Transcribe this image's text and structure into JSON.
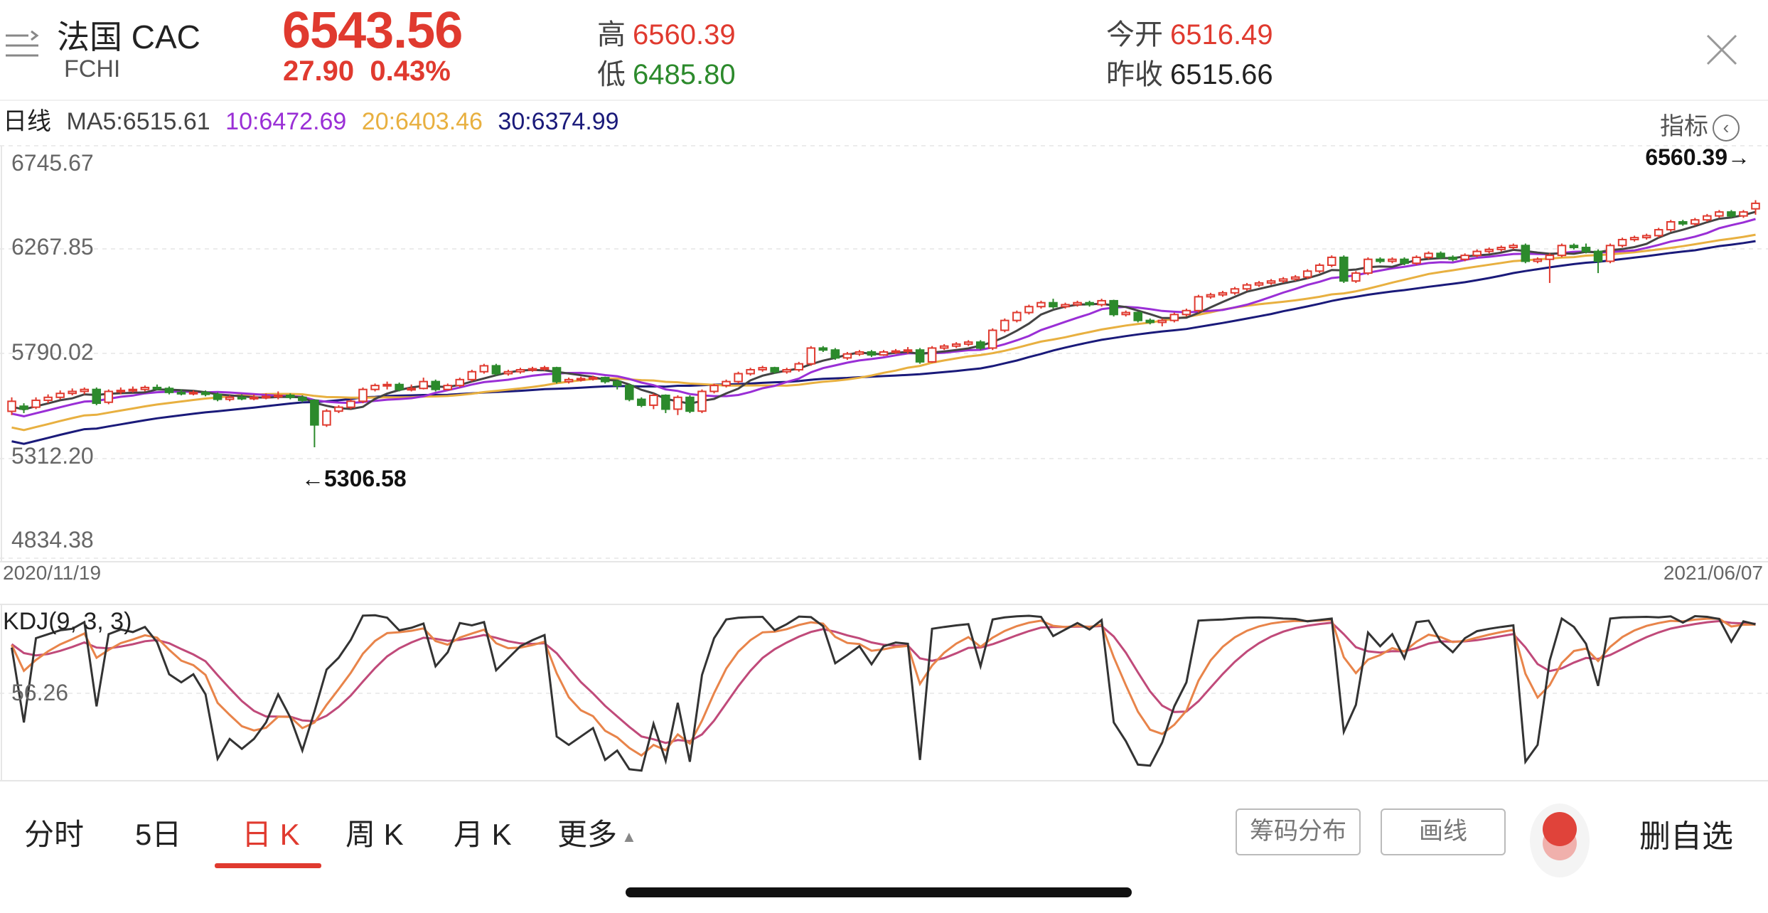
{
  "header": {
    "title": "法国 CAC",
    "subtitle": "FCHI",
    "price": "6543.56",
    "change": "27.90",
    "change_pct": "0.43%",
    "high_label": "高",
    "high_value": "6560.39",
    "low_label": "低",
    "low_value": "6485.80",
    "open_label": "今开",
    "open_value": "6516.49",
    "prev_close_label": "昨收",
    "prev_close_value": "6515.66",
    "menu_icon": "list-menu-icon",
    "close_icon": "close-icon"
  },
  "ma_legend": {
    "period_label": "日线",
    "ma5": "MA5:6515.61",
    "ma10": "10:6472.69",
    "ma20": "20:6403.46",
    "ma30": "30:6374.99",
    "indicator_label": "指标",
    "indicator_icon": "chevron-left-icon"
  },
  "colors": {
    "up": "#e03a2f",
    "down": "#2c8a2c",
    "ma5": "#444444",
    "ma10": "#9a2fd6",
    "ma20": "#e8b040",
    "ma30": "#1a1a7a",
    "k": "#333333",
    "d": "#e8844a",
    "j": "#c04a7a"
  },
  "chart_data": [
    {
      "type": "candlestick",
      "y_ticks": [
        "6745.67",
        "6267.85",
        "5790.02",
        "5312.20",
        "4834.38"
      ],
      "ylim": [
        4834.38,
        6745.67
      ],
      "x_start_label": "2020/11/19",
      "x_end_label": "2021/06/07",
      "high_annotation": "6560.39→",
      "low_annotation": "←5306.58",
      "candles": [
        [
          5489,
          5540,
          5470,
          5560
        ],
        [
          5515,
          5500,
          5480,
          5530
        ],
        [
          5510,
          5545,
          5500,
          5560
        ],
        [
          5545,
          5560,
          5530,
          5575
        ],
        [
          5560,
          5580,
          5550,
          5595
        ],
        [
          5580,
          5590,
          5570,
          5605
        ],
        [
          5590,
          5600,
          5575,
          5610
        ],
        [
          5600,
          5530,
          5520,
          5610
        ],
        [
          5535,
          5590,
          5525,
          5600
        ],
        [
          5590,
          5595,
          5575,
          5610
        ],
        [
          5595,
          5600,
          5585,
          5615
        ],
        [
          5600,
          5610,
          5590,
          5620
        ],
        [
          5610,
          5605,
          5595,
          5625
        ],
        [
          5605,
          5585,
          5575,
          5615
        ],
        [
          5585,
          5580,
          5570,
          5600
        ],
        [
          5580,
          5585,
          5570,
          5595
        ],
        [
          5585,
          5575,
          5565,
          5595
        ],
        [
          5575,
          5550,
          5540,
          5585
        ],
        [
          5550,
          5560,
          5540,
          5570
        ],
        [
          5560,
          5555,
          5545,
          5575
        ],
        [
          5555,
          5560,
          5545,
          5575
        ],
        [
          5560,
          5565,
          5550,
          5580
        ],
        [
          5565,
          5570,
          5550,
          5590
        ],
        [
          5570,
          5560,
          5550,
          5580
        ],
        [
          5560,
          5545,
          5535,
          5570
        ],
        [
          5545,
          5420,
          5307,
          5550
        ],
        [
          5420,
          5490,
          5410,
          5500
        ],
        [
          5490,
          5510,
          5480,
          5520
        ],
        [
          5510,
          5540,
          5500,
          5550
        ],
        [
          5540,
          5600,
          5530,
          5610
        ],
        [
          5600,
          5620,
          5590,
          5630
        ],
        [
          5620,
          5625,
          5600,
          5640
        ],
        [
          5625,
          5600,
          5590,
          5635
        ],
        [
          5600,
          5605,
          5590,
          5625
        ],
        [
          5605,
          5640,
          5600,
          5660
        ],
        [
          5640,
          5600,
          5590,
          5650
        ],
        [
          5600,
          5620,
          5595,
          5630
        ],
        [
          5620,
          5650,
          5610,
          5660
        ],
        [
          5650,
          5690,
          5640,
          5700
        ],
        [
          5690,
          5720,
          5680,
          5730
        ],
        [
          5720,
          5680,
          5670,
          5730
        ],
        [
          5680,
          5690,
          5670,
          5700
        ],
        [
          5690,
          5700,
          5680,
          5710
        ],
        [
          5700,
          5705,
          5690,
          5715
        ],
        [
          5705,
          5710,
          5695,
          5720
        ],
        [
          5710,
          5640,
          5630,
          5715
        ],
        [
          5640,
          5650,
          5630,
          5660
        ],
        [
          5650,
          5655,
          5640,
          5665
        ],
        [
          5655,
          5660,
          5645,
          5670
        ],
        [
          5660,
          5640,
          5630,
          5665
        ],
        [
          5640,
          5620,
          5600,
          5650
        ],
        [
          5620,
          5550,
          5540,
          5630
        ],
        [
          5550,
          5520,
          5510,
          5560
        ],
        [
          5520,
          5570,
          5500,
          5580
        ],
        [
          5570,
          5500,
          5480,
          5575
        ],
        [
          5500,
          5560,
          5470,
          5570
        ],
        [
          5560,
          5490,
          5480,
          5570
        ],
        [
          5490,
          5590,
          5480,
          5600
        ],
        [
          5590,
          5620,
          5580,
          5630
        ],
        [
          5620,
          5640,
          5610,
          5650
        ],
        [
          5640,
          5680,
          5630,
          5690
        ],
        [
          5680,
          5700,
          5670,
          5710
        ],
        [
          5700,
          5710,
          5690,
          5720
        ],
        [
          5710,
          5690,
          5680,
          5715
        ],
        [
          5690,
          5700,
          5680,
          5710
        ],
        [
          5700,
          5730,
          5690,
          5740
        ],
        [
          5730,
          5810,
          5720,
          5820
        ],
        [
          5810,
          5800,
          5790,
          5820
        ],
        [
          5800,
          5760,
          5750,
          5810
        ],
        [
          5760,
          5780,
          5750,
          5790
        ],
        [
          5780,
          5790,
          5770,
          5800
        ],
        [
          5790,
          5775,
          5765,
          5800
        ],
        [
          5775,
          5790,
          5770,
          5800
        ],
        [
          5790,
          5795,
          5780,
          5805
        ],
        [
          5795,
          5800,
          5780,
          5815
        ],
        [
          5800,
          5740,
          5730,
          5810
        ],
        [
          5740,
          5810,
          5735,
          5820
        ],
        [
          5810,
          5820,
          5800,
          5830
        ],
        [
          5820,
          5830,
          5810,
          5840
        ],
        [
          5830,
          5840,
          5820,
          5850
        ],
        [
          5840,
          5810,
          5800,
          5850
        ],
        [
          5810,
          5900,
          5800,
          5910
        ],
        [
          5900,
          5950,
          5890,
          5960
        ],
        [
          5950,
          5990,
          5940,
          6000
        ],
        [
          5990,
          6020,
          5980,
          6030
        ],
        [
          6020,
          6040,
          6010,
          6050
        ],
        [
          6040,
          6020,
          6010,
          6060
        ],
        [
          6020,
          6030,
          6010,
          6040
        ],
        [
          6030,
          6040,
          6020,
          6050
        ],
        [
          6040,
          6030,
          6020,
          6050
        ],
        [
          6030,
          6050,
          6020,
          6060
        ],
        [
          6050,
          5980,
          5970,
          6055
        ],
        [
          5980,
          5990,
          5970,
          6000
        ],
        [
          5990,
          5950,
          5940,
          5995
        ],
        [
          5950,
          5940,
          5930,
          5960
        ],
        [
          5940,
          5950,
          5920,
          5960
        ],
        [
          5950,
          5980,
          5940,
          5990
        ],
        [
          5980,
          6000,
          5970,
          6010
        ],
        [
          6000,
          6070,
          5990,
          6080
        ],
        [
          6070,
          6080,
          6060,
          6090
        ],
        [
          6080,
          6090,
          6070,
          6100
        ],
        [
          6090,
          6110,
          6080,
          6120
        ],
        [
          6110,
          6130,
          6100,
          6140
        ],
        [
          6130,
          6140,
          6120,
          6150
        ],
        [
          6140,
          6150,
          6130,
          6160
        ],
        [
          6150,
          6160,
          6140,
          6170
        ],
        [
          6160,
          6170,
          6150,
          6180
        ],
        [
          6170,
          6200,
          6160,
          6210
        ],
        [
          6200,
          6230,
          6190,
          6240
        ],
        [
          6230,
          6270,
          6220,
          6280
        ],
        [
          6270,
          6150,
          6140,
          6280
        ],
        [
          6150,
          6190,
          6140,
          6200
        ],
        [
          6190,
          6260,
          6180,
          6270
        ],
        [
          6260,
          6250,
          6240,
          6270
        ],
        [
          6250,
          6260,
          6240,
          6270
        ],
        [
          6260,
          6240,
          6230,
          6270
        ],
        [
          6240,
          6270,
          6230,
          6280
        ],
        [
          6270,
          6290,
          6260,
          6300
        ],
        [
          6290,
          6270,
          6260,
          6300
        ],
        [
          6270,
          6260,
          6250,
          6280
        ],
        [
          6260,
          6280,
          6250,
          6290
        ],
        [
          6280,
          6300,
          6270,
          6310
        ],
        [
          6300,
          6310,
          6290,
          6320
        ],
        [
          6310,
          6320,
          6300,
          6330
        ],
        [
          6320,
          6330,
          6310,
          6340
        ],
        [
          6330,
          6250,
          6240,
          6340
        ],
        [
          6250,
          6260,
          6240,
          6270
        ],
        [
          6260,
          6280,
          6140,
          6290
        ],
        [
          6280,
          6330,
          6270,
          6340
        ],
        [
          6330,
          6320,
          6310,
          6340
        ],
        [
          6320,
          6300,
          6290,
          6340
        ],
        [
          6300,
          6250,
          6190,
          6310
        ],
        [
          6250,
          6330,
          6240,
          6340
        ],
        [
          6330,
          6360,
          6320,
          6370
        ],
        [
          6360,
          6370,
          6350,
          6380
        ],
        [
          6370,
          6380,
          6360,
          6390
        ],
        [
          6380,
          6410,
          6370,
          6420
        ],
        [
          6410,
          6450,
          6400,
          6460
        ],
        [
          6450,
          6440,
          6430,
          6460
        ],
        [
          6440,
          6460,
          6430,
          6470
        ],
        [
          6460,
          6480,
          6450,
          6490
        ],
        [
          6480,
          6500,
          6470,
          6510
        ],
        [
          6500,
          6480,
          6470,
          6510
        ],
        [
          6480,
          6500,
          6470,
          6510
        ],
        [
          6516,
          6544,
          6486,
          6560
        ]
      ]
    },
    {
      "type": "line",
      "title": "KDJ(9, 3, 3)",
      "y_tick": "56.26",
      "ylim": [
        0,
        100
      ]
    }
  ],
  "tabs": [
    {
      "label": "分时"
    },
    {
      "label": "5日"
    },
    {
      "label": "日 K"
    },
    {
      "label": "周 K"
    },
    {
      "label": "月 K"
    },
    {
      "label": "更多"
    }
  ],
  "active_tab": "日 K",
  "tools": {
    "chip_distribution": "筹码分布",
    "draw_line": "画线",
    "remove_favorite": "删自选"
  }
}
